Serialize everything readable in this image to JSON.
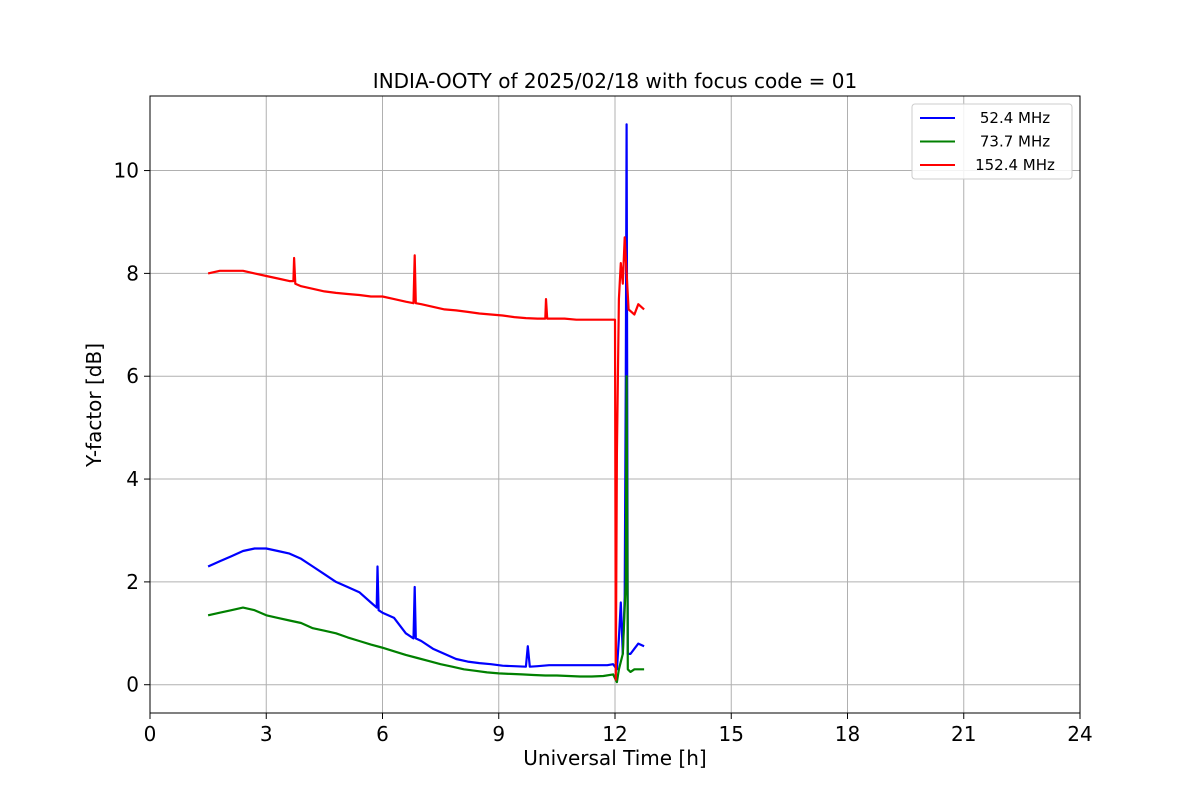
{
  "chart_data": {
    "type": "line",
    "title": "INDIA-OOTY of 2025/02/18 with focus code = 01",
    "xlabel": "Universal Time [h]",
    "ylabel": "Y-factor [dB]",
    "xlim": [
      0,
      24
    ],
    "ylim": [
      -0.55,
      11.45
    ],
    "xticks": [
      0,
      3,
      6,
      9,
      12,
      15,
      18,
      21,
      24
    ],
    "yticks": [
      0,
      2,
      4,
      6,
      8,
      10
    ],
    "grid": true,
    "legend_position": "top-right",
    "series": [
      {
        "name": "52.4 MHz",
        "color": "#0000ff",
        "x": [
          1.5,
          1.8,
          2.1,
          2.4,
          2.7,
          3.0,
          3.3,
          3.6,
          3.9,
          4.2,
          4.5,
          4.8,
          5.1,
          5.4,
          5.7,
          5.85,
          5.87,
          5.9,
          6.0,
          6.3,
          6.6,
          6.8,
          6.83,
          6.86,
          7.0,
          7.3,
          7.6,
          7.9,
          8.2,
          8.5,
          8.8,
          9.1,
          9.4,
          9.7,
          9.75,
          9.8,
          10.0,
          10.3,
          10.6,
          10.9,
          11.2,
          11.5,
          11.8,
          11.95,
          12.05,
          12.1,
          12.15,
          12.2,
          12.25,
          12.28,
          12.3,
          12.33,
          12.4,
          12.5,
          12.6,
          12.75
        ],
        "y": [
          2.3,
          2.4,
          2.5,
          2.6,
          2.65,
          2.65,
          2.6,
          2.55,
          2.45,
          2.3,
          2.15,
          2.0,
          1.9,
          1.8,
          1.6,
          1.5,
          2.3,
          1.45,
          1.4,
          1.3,
          1.0,
          0.9,
          1.9,
          0.9,
          0.85,
          0.7,
          0.6,
          0.5,
          0.45,
          0.42,
          0.4,
          0.37,
          0.36,
          0.35,
          0.75,
          0.35,
          0.36,
          0.38,
          0.38,
          0.38,
          0.38,
          0.38,
          0.38,
          0.4,
          0.3,
          0.9,
          1.6,
          0.6,
          1.7,
          6.0,
          10.9,
          0.6,
          0.6,
          0.7,
          0.8,
          0.75
        ]
      },
      {
        "name": "73.7 MHz",
        "color": "#008000",
        "x": [
          1.5,
          1.8,
          2.1,
          2.4,
          2.7,
          3.0,
          3.3,
          3.6,
          3.9,
          4.2,
          4.5,
          4.8,
          5.1,
          5.4,
          5.7,
          6.0,
          6.3,
          6.6,
          6.9,
          7.2,
          7.5,
          7.8,
          8.1,
          8.4,
          8.7,
          9.0,
          9.3,
          9.6,
          9.9,
          10.2,
          10.5,
          10.8,
          11.1,
          11.4,
          11.7,
          11.95,
          12.05,
          12.1,
          12.2,
          12.28,
          12.3,
          12.33,
          12.4,
          12.5,
          12.6,
          12.75
        ],
        "y": [
          1.35,
          1.4,
          1.45,
          1.5,
          1.45,
          1.35,
          1.3,
          1.25,
          1.2,
          1.1,
          1.05,
          1.0,
          0.92,
          0.85,
          0.78,
          0.72,
          0.65,
          0.58,
          0.52,
          0.46,
          0.4,
          0.35,
          0.3,
          0.27,
          0.24,
          0.22,
          0.21,
          0.2,
          0.19,
          0.18,
          0.18,
          0.17,
          0.16,
          0.16,
          0.17,
          0.2,
          0.05,
          0.3,
          0.6,
          2.0,
          6.0,
          0.3,
          0.25,
          0.3,
          0.3,
          0.3
        ]
      },
      {
        "name": "152.4 MHz",
        "color": "#ff0000",
        "x": [
          1.5,
          1.8,
          2.1,
          2.4,
          2.7,
          3.0,
          3.3,
          3.6,
          3.7,
          3.72,
          3.75,
          3.9,
          4.2,
          4.5,
          4.8,
          5.1,
          5.4,
          5.7,
          6.0,
          6.3,
          6.6,
          6.8,
          6.83,
          6.86,
          7.0,
          7.3,
          7.6,
          7.9,
          8.2,
          8.5,
          8.8,
          9.1,
          9.4,
          9.7,
          10.0,
          10.2,
          10.22,
          10.25,
          10.4,
          10.7,
          11.0,
          11.3,
          11.6,
          11.9,
          12.0,
          12.02,
          12.05,
          12.1,
          12.15,
          12.2,
          12.25,
          12.35,
          12.5,
          12.6,
          12.75
        ],
        "y": [
          8.0,
          8.05,
          8.05,
          8.05,
          8.0,
          7.95,
          7.9,
          7.85,
          7.85,
          8.3,
          7.8,
          7.75,
          7.7,
          7.65,
          7.62,
          7.6,
          7.58,
          7.55,
          7.55,
          7.5,
          7.45,
          7.42,
          8.35,
          7.42,
          7.4,
          7.35,
          7.3,
          7.28,
          7.25,
          7.22,
          7.2,
          7.18,
          7.15,
          7.13,
          7.12,
          7.12,
          7.5,
          7.12,
          7.12,
          7.12,
          7.1,
          7.1,
          7.1,
          7.1,
          7.1,
          0.1,
          4.5,
          7.5,
          8.2,
          7.8,
          8.7,
          7.3,
          7.2,
          7.4,
          7.3
        ]
      }
    ]
  }
}
